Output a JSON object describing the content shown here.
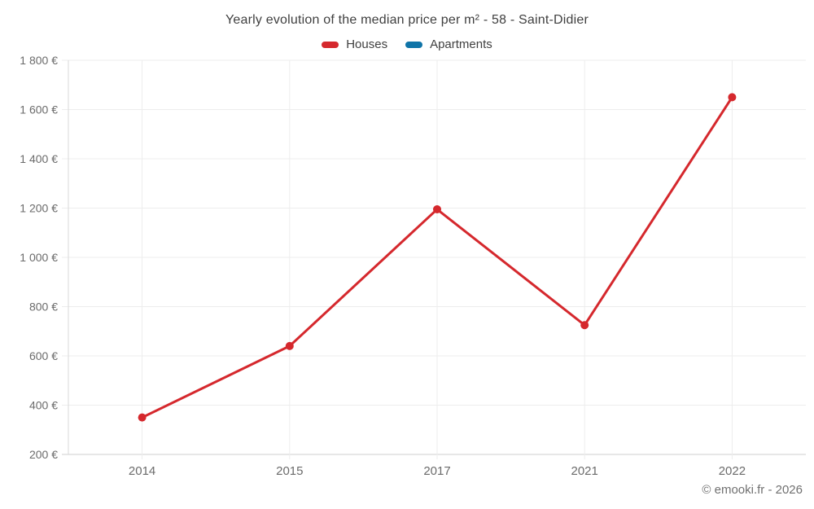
{
  "chart_data": {
    "type": "line",
    "title": "Yearly evolution of the median price per m² - 58 - Saint-Didier",
    "categories": [
      "2014",
      "2015",
      "2017",
      "2021",
      "2022"
    ],
    "series": [
      {
        "name": "Houses",
        "color": "#d5282d",
        "values": [
          350,
          640,
          1195,
          725,
          1650
        ]
      },
      {
        "name": "Apartments",
        "color": "#0f74a8",
        "values": []
      }
    ],
    "ylim": [
      200,
      1800
    ],
    "ytick_step": 200,
    "y_unit": "€",
    "xlabel": "",
    "ylabel": "",
    "grid": true,
    "legend_position": "top",
    "marker_radius": 5,
    "line_width": 3,
    "footer": "© emooki.fr - 2026"
  },
  "colors": {
    "grid_line": "#ededed",
    "axis_line": "#d9d9d9",
    "bottom_axis_line": "#cfcfcf",
    "axis_label": "#6b6b6b",
    "title_text": "#3f3f3f",
    "footer_text": "#707070",
    "background": "#ffffff"
  }
}
